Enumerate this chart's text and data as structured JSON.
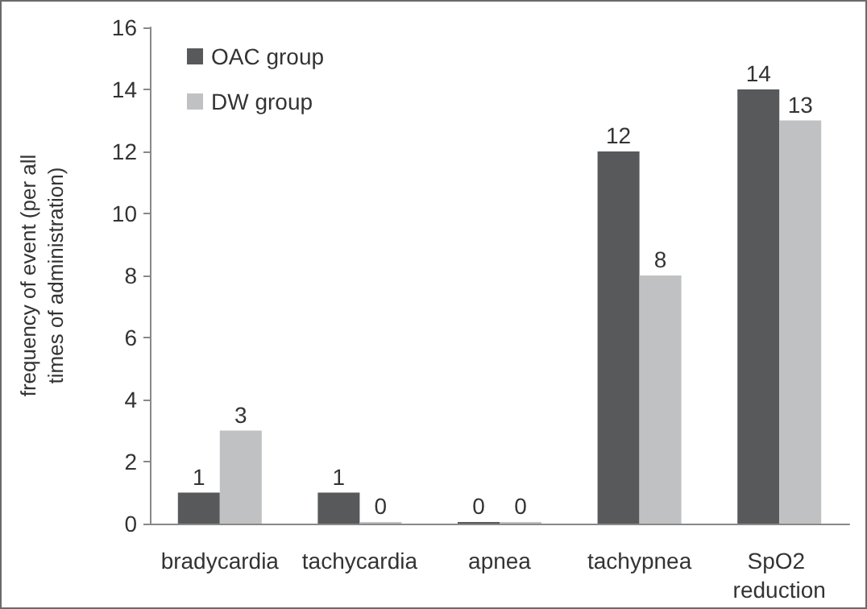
{
  "chart_data": {
    "type": "bar",
    "ylabel": "frequency of event (per all times of administration)",
    "categories": [
      "bradycardia",
      "tachycardia",
      "apnea",
      "tachypnea",
      "SpO2 reduction"
    ],
    "series": [
      {
        "name": "OAC group",
        "color": "#58595b",
        "values": [
          1,
          1,
          0,
          12,
          14
        ]
      },
      {
        "name": "DW group",
        "color": "#c0c1c2",
        "values": [
          3,
          0,
          0,
          8,
          13
        ]
      }
    ],
    "ylim": [
      0,
      16
    ],
    "yticks": [
      0,
      2,
      4,
      6,
      8,
      10,
      12,
      14,
      16
    ],
    "grid": false,
    "legend": "top left",
    "data_labels": true
  }
}
